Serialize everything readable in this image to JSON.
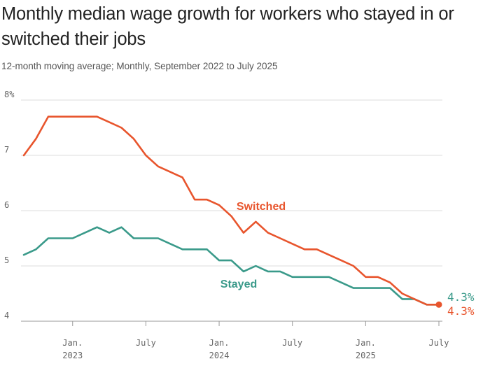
{
  "chart_data": {
    "type": "line",
    "title": "Monthly median wage growth for workers who stayed in or switched their jobs",
    "subtitle": "12-month moving average; Monthly, September 2022 to July 2025",
    "y_unit": "%",
    "ylim": [
      4,
      8
    ],
    "yticks": [
      {
        "value": 4,
        "label": "4"
      },
      {
        "value": 5,
        "label": "5"
      },
      {
        "value": 6,
        "label": "6"
      },
      {
        "value": 7,
        "label": "7"
      },
      {
        "value": 8,
        "label": "8%"
      }
    ],
    "xticks": [
      {
        "index": 4,
        "label": "Jan.",
        "sublabel": "2023"
      },
      {
        "index": 10,
        "label": "July",
        "sublabel": ""
      },
      {
        "index": 16,
        "label": "Jan.",
        "sublabel": "2024"
      },
      {
        "index": 22,
        "label": "July",
        "sublabel": ""
      },
      {
        "index": 28,
        "label": "Jan.",
        "sublabel": "2025"
      },
      {
        "index": 34,
        "label": "July",
        "sublabel": ""
      }
    ],
    "x": [
      "2022-09",
      "2022-10",
      "2022-11",
      "2022-12",
      "2023-01",
      "2023-02",
      "2023-03",
      "2023-04",
      "2023-05",
      "2023-06",
      "2023-07",
      "2023-08",
      "2023-09",
      "2023-10",
      "2023-11",
      "2023-12",
      "2024-01",
      "2024-02",
      "2024-03",
      "2024-04",
      "2024-05",
      "2024-06",
      "2024-07",
      "2024-08",
      "2024-09",
      "2024-10",
      "2024-11",
      "2024-12",
      "2025-01",
      "2025-02",
      "2025-03",
      "2025-04",
      "2025-05",
      "2025-06",
      "2025-07"
    ],
    "series": [
      {
        "name": "Switched",
        "color": "#e8552d",
        "values": [
          7.0,
          7.3,
          7.7,
          7.7,
          7.7,
          7.7,
          7.7,
          7.6,
          7.5,
          7.3,
          7.0,
          6.8,
          6.7,
          6.6,
          6.2,
          6.2,
          6.1,
          5.9,
          5.6,
          5.8,
          5.6,
          5.5,
          5.4,
          5.3,
          5.3,
          5.2,
          5.1,
          5.0,
          4.8,
          4.8,
          4.7,
          4.5,
          4.4,
          4.3,
          4.3
        ],
        "end_label": "4.3%"
      },
      {
        "name": "Stayed",
        "color": "#3a9a8a",
        "values": [
          5.2,
          5.3,
          5.5,
          5.5,
          5.5,
          5.6,
          5.7,
          5.6,
          5.7,
          5.5,
          5.5,
          5.5,
          5.4,
          5.3,
          5.3,
          5.3,
          5.1,
          5.1,
          4.9,
          5.0,
          4.9,
          4.9,
          4.8,
          4.8,
          4.8,
          4.8,
          4.7,
          4.6,
          4.6,
          4.6,
          4.6,
          4.4,
          4.4,
          4.3,
          4.3
        ],
        "end_label": "4.3%"
      }
    ]
  }
}
